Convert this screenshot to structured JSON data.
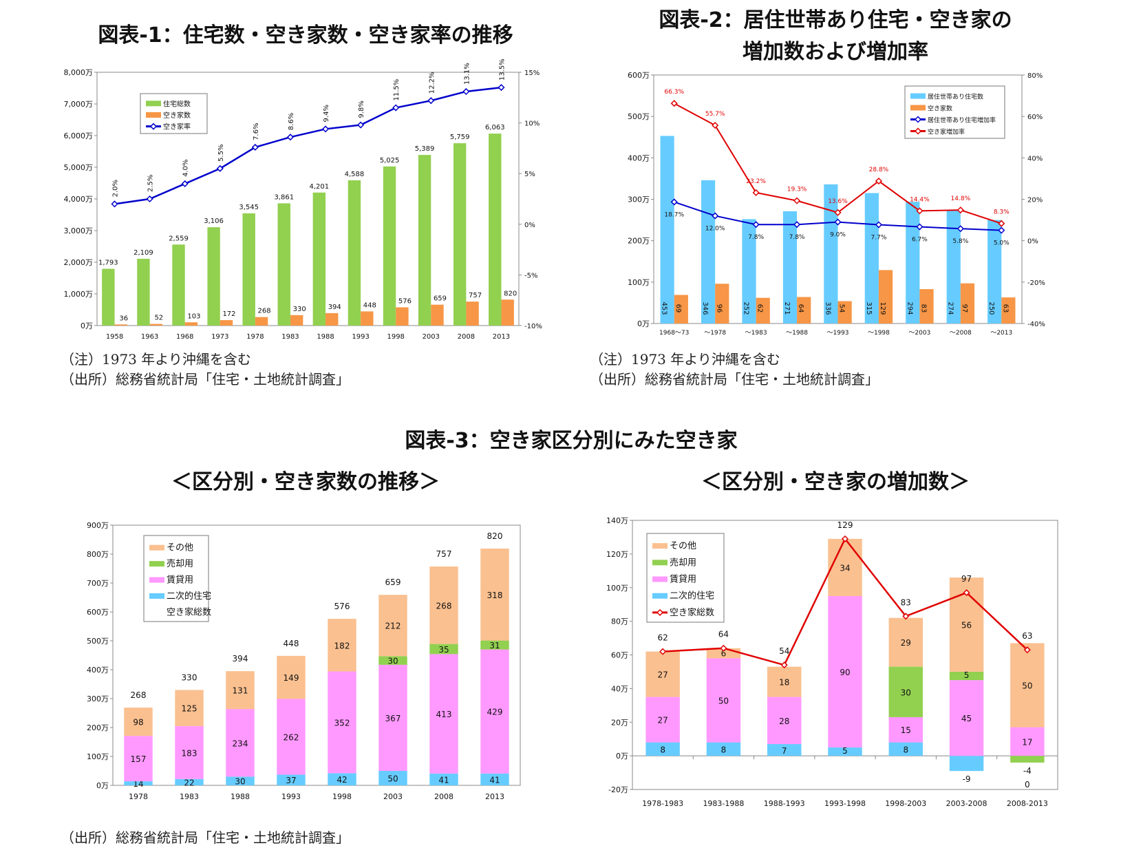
{
  "titles": {
    "fig1": "図表-1：住宅数・空き家数・空き家率の推移",
    "fig2_line1": "図表-2：居住世帯あり住宅・空き家の",
    "fig2_line2": "増加数および増加率",
    "fig3": "図表-3：空き家区分別にみた空き家",
    "fig3_left": "＜区分別・空き家数の推移＞",
    "fig3_right": "＜区分別・空き家の増加数＞"
  },
  "notes": {
    "fig1_note": "（注）1973 年より沖縄を含む",
    "fig1_source": "（出所）総務省統計局「住宅・土地統計調査」",
    "fig2_note": "（注）1973 年より沖縄を含む",
    "fig2_source": "（出所）総務省統計局「住宅・土地統計調査」",
    "fig3_source": "（出所）総務省統計局「住宅・土地統計調査」"
  },
  "chart_data": [
    {
      "type": "bar+line",
      "categories": [
        "1958",
        "1963",
        "1968",
        "1973",
        "1978",
        "1983",
        "1988",
        "1993",
        "1998",
        "2003",
        "2008",
        "2013"
      ],
      "series": [
        {
          "name": "住宅総数",
          "kind": "bar",
          "axis": "left",
          "color": "#92D050",
          "values": [
            1793,
            2109,
            2559,
            3106,
            3545,
            3861,
            4201,
            4588,
            5025,
            5389,
            5759,
            6063
          ],
          "labels": [
            "1,793",
            "2,109",
            "2,559",
            "3,106",
            "3,545",
            "3,861",
            "4,201",
            "4,588",
            "5,025",
            "5,389",
            "5,759",
            "6,063"
          ]
        },
        {
          "name": "空き家数",
          "kind": "bar",
          "axis": "left",
          "color": "#F79646",
          "values": [
            36,
            52,
            103,
            172,
            268,
            330,
            394,
            448,
            576,
            659,
            757,
            820
          ],
          "labels": [
            "36",
            "52",
            "103",
            "172",
            "268",
            "330",
            "394",
            "448",
            "576",
            "659",
            "757",
            "820"
          ]
        },
        {
          "name": "空き家率",
          "kind": "line",
          "axis": "right",
          "color": "#0000CC",
          "values": [
            2.0,
            2.5,
            4.0,
            5.5,
            7.6,
            8.6,
            9.4,
            9.8,
            11.5,
            12.2,
            13.1,
            13.5
          ],
          "labels": [
            "2.0%",
            "2.5%",
            "4.0%",
            "5.5%",
            "7.6%",
            "8.6%",
            "9.4%",
            "9.8%",
            "11.5%",
            "12.2%",
            "13.1%",
            "13.5%"
          ]
        }
      ],
      "ylim": [
        0,
        8000
      ],
      "y_ticks": [
        "0万",
        "1,000万",
        "2,000万",
        "3,000万",
        "4,000万",
        "5,000万",
        "6,000万",
        "7,000万",
        "8,000万"
      ],
      "y2lim": [
        -10,
        15
      ],
      "y2_ticks": [
        "-10%",
        "-5%",
        "0%",
        "5%",
        "10%",
        "15%"
      ],
      "legend": "top-left",
      "grid": false
    },
    {
      "type": "bar+line",
      "categories": [
        "1968〜73",
        "〜1978",
        "〜1983",
        "〜1988",
        "〜1993",
        "〜1998",
        "〜2003",
        "〜2008",
        "〜2013"
      ],
      "series": [
        {
          "name": "居住世帯あり住宅数",
          "kind": "bar",
          "axis": "left",
          "color": "#66CCFF",
          "values": [
            453,
            346,
            252,
            271,
            336,
            315,
            294,
            274,
            250
          ]
        },
        {
          "name": "空き家数",
          "kind": "bar",
          "axis": "left",
          "color": "#F79646",
          "values": [
            69,
            96,
            62,
            64,
            54,
            129,
            83,
            97,
            63
          ]
        },
        {
          "name": "居住世帯あり住宅増加率",
          "kind": "line",
          "axis": "right",
          "color": "#0000CC",
          "values": [
            18.7,
            12.0,
            7.8,
            7.8,
            9.0,
            7.7,
            6.7,
            5.8,
            5.0
          ],
          "labels": [
            "18.7%",
            "12.0%",
            "7.8%",
            "7.8%",
            "9.0%",
            "7.7%",
            "6.7%",
            "5.8%",
            "5.0%"
          ]
        },
        {
          "name": "空き家増加率",
          "kind": "line",
          "axis": "right",
          "color": "#E00000",
          "values": [
            66.3,
            55.7,
            23.2,
            19.3,
            13.6,
            28.8,
            14.4,
            14.8,
            8.3
          ],
          "labels": [
            "66.3%",
            "55.7%",
            "23.2%",
            "19.3%",
            "13.6%",
            "28.8%",
            "14.4%",
            "14.8%",
            "8.3%"
          ]
        }
      ],
      "ylim": [
        0,
        600
      ],
      "y_ticks": [
        "0万",
        "100万",
        "200万",
        "300万",
        "400万",
        "500万",
        "600万"
      ],
      "y2lim": [
        -40,
        80
      ],
      "y2_ticks": [
        "-40%",
        "-20%",
        "0%",
        "20%",
        "40%",
        "60%",
        "80%"
      ],
      "legend": "top-right",
      "grid": false
    },
    {
      "type": "stacked-bar",
      "categories": [
        "1978",
        "1983",
        "1988",
        "1993",
        "1998",
        "2003",
        "2008",
        "2013"
      ],
      "series": [
        {
          "name": "二次的住宅",
          "color": "#66CCFF",
          "values": [
            14,
            22,
            30,
            37,
            42,
            50,
            41,
            41
          ]
        },
        {
          "name": "賃貸用",
          "color": "#FF99FF",
          "values": [
            157,
            183,
            234,
            262,
            352,
            367,
            413,
            429
          ]
        },
        {
          "name": "売却用",
          "color": "#92D050",
          "values": [
            null,
            null,
            null,
            null,
            null,
            30,
            35,
            31
          ]
        },
        {
          "name": "その他",
          "color": "#FAC090",
          "values": [
            98,
            125,
            131,
            149,
            182,
            212,
            268,
            318
          ]
        }
      ],
      "totals": {
        "name": "空き家総数",
        "values": [
          268,
          330,
          394,
          448,
          576,
          659,
          757,
          820
        ]
      },
      "ylim": [
        0,
        900
      ],
      "y_ticks": [
        "0万",
        "100万",
        "200万",
        "300万",
        "400万",
        "500万",
        "600万",
        "700万",
        "800万",
        "900万"
      ],
      "legend": "top-left",
      "grid": false
    },
    {
      "type": "stacked-bar+line",
      "categories": [
        "1978-1983",
        "1983-1988",
        "1988-1993",
        "1993-1998",
        "1998-2003",
        "2003-2008",
        "2008-2013"
      ],
      "series": [
        {
          "name": "二次的住宅",
          "color": "#66CCFF",
          "values": [
            8,
            8,
            7,
            5,
            8,
            -9,
            0
          ]
        },
        {
          "name": "賃貸用",
          "color": "#FF99FF",
          "values": [
            27,
            50,
            28,
            90,
            15,
            45,
            17
          ]
        },
        {
          "name": "売却用",
          "color": "#92D050",
          "values": [
            null,
            null,
            null,
            null,
            30,
            5,
            -4
          ]
        },
        {
          "name": "その他",
          "color": "#FAC090",
          "values": [
            27,
            6,
            18,
            34,
            29,
            56,
            50
          ]
        }
      ],
      "totals": {
        "name": "空き家総数",
        "color": "#E00000",
        "values": [
          62,
          64,
          54,
          129,
          83,
          97,
          63
        ]
      },
      "ylim": [
        -20,
        140
      ],
      "y_ticks": [
        "-20万",
        "0万",
        "20万",
        "40万",
        "60万",
        "80万",
        "100万",
        "120万",
        "140万"
      ],
      "legend": "top-left",
      "grid": false
    }
  ]
}
